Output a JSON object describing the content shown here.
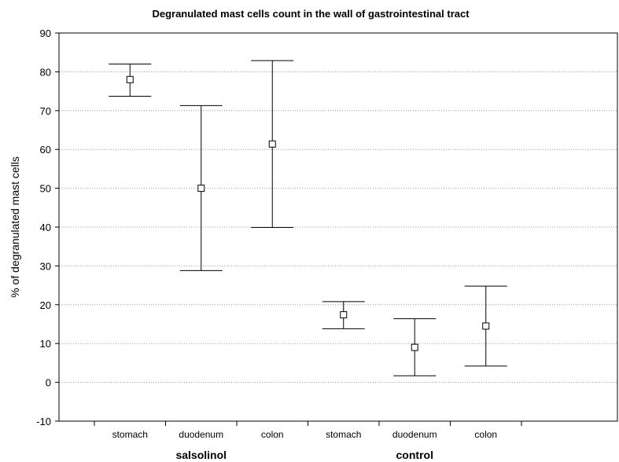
{
  "chart_data": {
    "type": "error-bar",
    "title": "Degranulated mast cells count in the wall of gastrointestinal tract",
    "xlabel": "",
    "ylabel": "% of degranulated mast cells",
    "ylim": [
      -10,
      90
    ],
    "yticks": [
      -10,
      0,
      10,
      20,
      30,
      40,
      50,
      60,
      70,
      80,
      90
    ],
    "grid": "horizontal dotted",
    "categories": [
      "stomach",
      "duodenum",
      "colon",
      "stomach",
      "duodenum",
      "colon"
    ],
    "groups": [
      {
        "label": "salsolinol",
        "categories": [
          "stomach",
          "duodenum",
          "colon"
        ]
      },
      {
        "label": "control",
        "categories": [
          "stomach",
          "duodenum",
          "colon"
        ]
      }
    ],
    "points": [
      {
        "group": "salsolinol",
        "category": "stomach",
        "mean": 78.0,
        "lower": 73.7,
        "upper": 82.0
      },
      {
        "group": "salsolinol",
        "category": "duodenum",
        "mean": 50.0,
        "lower": 28.8,
        "upper": 71.3
      },
      {
        "group": "salsolinol",
        "category": "colon",
        "mean": 61.4,
        "lower": 39.9,
        "upper": 82.9
      },
      {
        "group": "control",
        "category": "stomach",
        "mean": 17.4,
        "lower": 13.8,
        "upper": 20.8
      },
      {
        "group": "control",
        "category": "duodenum",
        "mean": 9.0,
        "lower": 1.7,
        "upper": 16.4
      },
      {
        "group": "control",
        "category": "colon",
        "mean": 14.5,
        "lower": 4.2,
        "upper": 24.8
      }
    ]
  }
}
